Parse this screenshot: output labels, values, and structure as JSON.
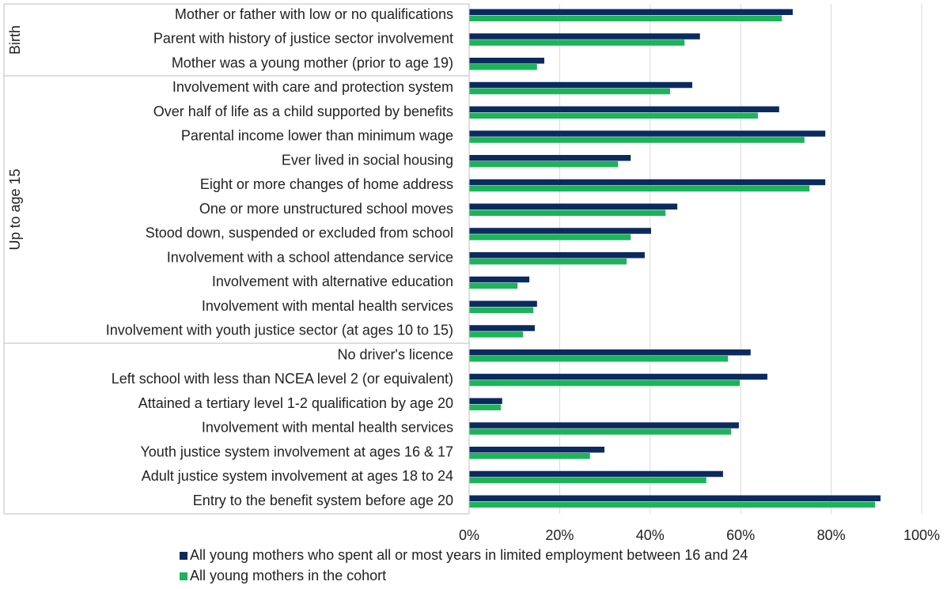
{
  "chart_data": {
    "type": "bar",
    "orientation": "horizontal",
    "groups": [
      {
        "label": "Birth",
        "categories": [
          "Mother or father with low or no qualifications",
          "Parent with history of justice sector involvement",
          "Mother was a young mother (prior to age 19)"
        ]
      },
      {
        "label": "Up to age 15",
        "categories": [
          "Involvement with care and protection system",
          "Over half of life as a child supported by benefits",
          "Parental income lower than minimum wage",
          "Ever lived in social housing",
          "Eight or more changes of home address",
          "One or more unstructured school moves",
          "Stood down, suspended or excluded from school",
          "Involvement with a school attendance service",
          "Involvement with alternative education",
          "Involvement with mental health services",
          "Involvement with youth justice sector (at ages 10 to 15)"
        ]
      },
      {
        "label": null,
        "categories": [
          "No driver's licence",
          "Left school with less than NCEA level 2 (or equivalent)",
          "Attained a tertiary level 1-2 qualification by age 20",
          "Involvement with mental health services",
          "Youth justice system involvement at ages 16 & 17",
          "Adult justice system involvement at ages 18 to 24",
          "Entry to the benefit system before age 20"
        ]
      }
    ],
    "series": [
      {
        "name": "All young mothers who spent all or most years in limited employment between 16 and 24",
        "color": "#0b2a5e",
        "values": [
          71.5,
          51.0,
          16.6,
          49.3,
          68.5,
          78.7,
          35.7,
          78.7,
          46.0,
          40.2,
          38.8,
          13.3,
          15.0,
          14.5,
          62.2,
          65.9,
          7.3,
          59.6,
          29.9,
          56.1,
          90.9
        ]
      },
      {
        "name": "All young mothers in the cohort",
        "color": "#1db35a",
        "values": [
          69.1,
          47.6,
          15.0,
          44.4,
          63.8,
          74.1,
          32.9,
          75.2,
          43.4,
          35.7,
          34.8,
          10.7,
          14.2,
          11.9,
          57.2,
          59.8,
          7.0,
          57.9,
          26.7,
          52.4,
          89.7
        ]
      }
    ],
    "xlim": [
      0,
      100
    ],
    "xticks": [
      {
        "value": 0,
        "label": "0%"
      },
      {
        "value": 20,
        "label": "20%"
      },
      {
        "value": 40,
        "label": "40%"
      },
      {
        "value": 60,
        "label": "60%"
      },
      {
        "value": 80,
        "label": "80%"
      },
      {
        "value": 100,
        "label": "100%"
      }
    ],
    "grid": true,
    "legend": "bottom"
  }
}
